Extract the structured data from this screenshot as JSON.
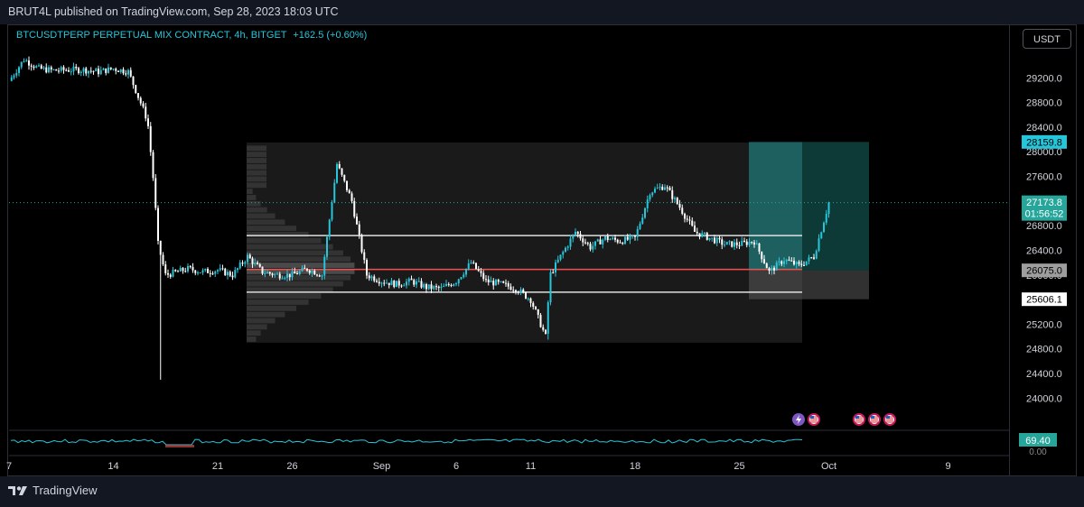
{
  "header": {
    "text": "BRUT4L published on TradingView.com, Sep 28, 2023 18:03 UTC"
  },
  "legend": {
    "symbol": "BTCUSDTPERP PERPETUAL MIX CONTRACT, 4h, BITGET",
    "change": "+162.5 (+0.60%)"
  },
  "currency_button": "USDT",
  "footer": {
    "logo_text": "TradingView"
  },
  "colors": {
    "up": "#26c6da",
    "down": "#ffffff",
    "background": "#000000",
    "current_price_badge": "#26a69a",
    "target_badge": "#26c6da",
    "red_level": "#ef5350"
  },
  "chart_data": {
    "type": "candlestick",
    "timeframe": "4h",
    "ylim": [
      23800,
      29600
    ],
    "price_ticks": [
      "29200.0",
      "28800.0",
      "28400.0",
      "28000.0",
      "27600.0",
      "27200.0",
      "26800.0",
      "26400.0",
      "26000.0",
      "25600.0",
      "25200.0",
      "24800.0",
      "24400.0",
      "24000.0"
    ],
    "date_ticks": [
      "7",
      "14",
      "21",
      "26",
      "Sep",
      "6",
      "11",
      "18",
      "25",
      "Oct",
      "9"
    ],
    "date_index": [
      0,
      7,
      14,
      19,
      25,
      30,
      35,
      42,
      49,
      55,
      63
    ],
    "price_labels": [
      {
        "label": "target",
        "value": "28159.8"
      },
      {
        "label": "current",
        "value": "27173.8",
        "countdown": "01:56:52"
      },
      {
        "label": "entry",
        "value": "26075.0"
      },
      {
        "label": "stop",
        "value": "25606.1"
      }
    ],
    "horizontal_levels": [
      {
        "name": "range-high",
        "value": 26640,
        "color": "white"
      },
      {
        "name": "poc",
        "value": 26090,
        "color": "red"
      },
      {
        "name": "range-low",
        "value": 25720,
        "color": "white"
      }
    ],
    "position": {
      "type": "long",
      "entry": 26075.0,
      "target": 28159.8,
      "stop": 25606.1
    },
    "volume_profile_range": [
      24900,
      28150
    ],
    "series_path": [
      [
        0,
        29150
      ],
      [
        1,
        29500
      ],
      [
        2,
        29350
      ],
      [
        3,
        29320
      ],
      [
        4,
        29330
      ],
      [
        5,
        29330
      ],
      [
        6,
        29300
      ],
      [
        7,
        29350
      ],
      [
        8,
        29300
      ],
      [
        8.5,
        29000
      ],
      [
        9.3,
        28500
      ],
      [
        9.7,
        27500
      ],
      [
        10,
        26500
      ],
      [
        10.5,
        26000
      ],
      [
        11,
        26030
      ],
      [
        12,
        26100
      ],
      [
        13,
        26050
      ],
      [
        14,
        26080
      ],
      [
        15,
        26000
      ],
      [
        16,
        26300
      ],
      [
        17,
        26050
      ],
      [
        18,
        26000
      ],
      [
        19,
        26000
      ],
      [
        20,
        26100
      ],
      [
        21,
        26000
      ],
      [
        22,
        27800
      ],
      [
        23,
        27200
      ],
      [
        24,
        26000
      ],
      [
        25,
        25900
      ],
      [
        26,
        25850
      ],
      [
        27,
        25900
      ],
      [
        28,
        25800
      ],
      [
        29,
        25780
      ],
      [
        30,
        25900
      ],
      [
        31,
        26200
      ],
      [
        32,
        25900
      ],
      [
        33,
        25850
      ],
      [
        34,
        25780
      ],
      [
        35,
        25600
      ],
      [
        36,
        25000
      ],
      [
        36.3,
        26000
      ],
      [
        37,
        26300
      ],
      [
        38,
        26700
      ],
      [
        39,
        26450
      ],
      [
        40,
        26600
      ],
      [
        41,
        26550
      ],
      [
        42,
        26600
      ],
      [
        43,
        27350
      ],
      [
        44,
        27450
      ],
      [
        45,
        27100
      ],
      [
        46,
        26700
      ],
      [
        47,
        26600
      ],
      [
        48,
        26500
      ],
      [
        49,
        26500
      ],
      [
        50,
        26550
      ],
      [
        51,
        26050
      ],
      [
        52,
        26250
      ],
      [
        53,
        26150
      ],
      [
        54,
        26300
      ],
      [
        55,
        27173.8
      ]
    ],
    "oscillator": {
      "value": "69.40",
      "zero_label": "0.00"
    },
    "event_icons": [
      "lightning-icon",
      "us-flag-icon",
      "us-flag-icon",
      "us-flag-icon",
      "us-flag-icon"
    ]
  }
}
